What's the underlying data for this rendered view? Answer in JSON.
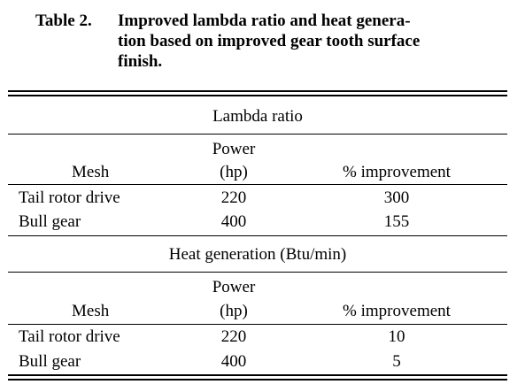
{
  "table": {
    "label": "Table 2.",
    "caption": "Improved lambda ratio and heat generation based on improved gear tooth surface finish.",
    "caption_lines": [
      "Improved lambda ratio and heat genera-",
      "tion based on improved gear tooth surface",
      "finish."
    ],
    "sections": [
      {
        "title": "Lambda ratio",
        "headers": {
          "mesh": "Mesh",
          "power_line1": "Power",
          "power_line2": "(hp)",
          "improvement": "% improvement"
        },
        "rows": [
          {
            "mesh": "Tail rotor drive",
            "power": "220",
            "improvement": "300"
          },
          {
            "mesh": "Bull gear",
            "power": "400",
            "improvement": "155"
          }
        ]
      },
      {
        "title": "Heat generation (Btu/min)",
        "headers": {
          "mesh": "Mesh",
          "power_line1": "Power",
          "power_line2": "(hp)",
          "improvement": "% improvement"
        },
        "rows": [
          {
            "mesh": "Tail rotor drive",
            "power": "220",
            "improvement": "10"
          },
          {
            "mesh": "Bull gear",
            "power": "400",
            "improvement": "5"
          }
        ]
      }
    ]
  }
}
